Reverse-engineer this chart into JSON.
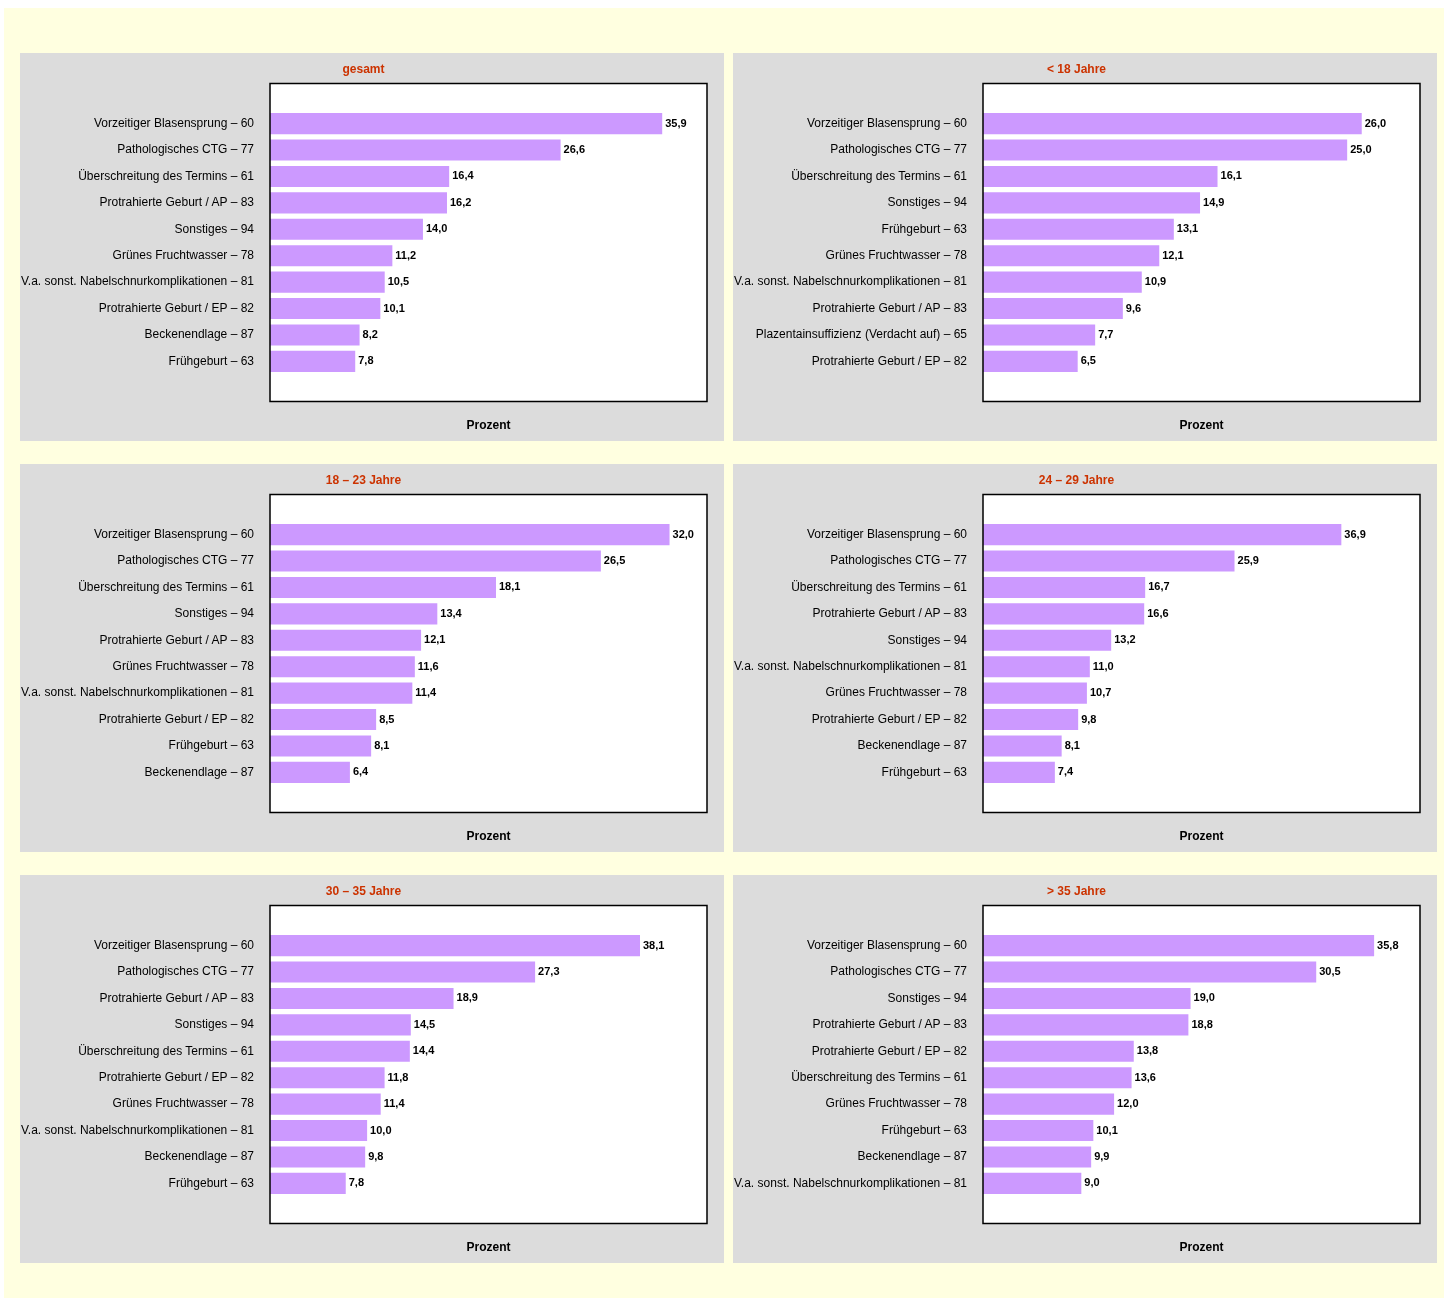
{
  "chart_data": [
    {
      "type": "bar",
      "orientation": "horizontal",
      "title": "gesamt",
      "xlabel": "Prozent",
      "color": "#cc99ff",
      "tick_labels": "y",
      "categories": [
        "Vorzeitiger Blasensprung – 60",
        "Pathologisches CTG – 77",
        "Überschreitung des Termins – 61",
        "Protrahierte Geburt / AP – 83",
        "Sonstiges – 94",
        "Grünes Fruchtwasser – 78",
        "V.a. sonst. Nabelschnurkomplikationen – 81",
        "Protrahierte Geburt / EP – 82",
        "Beckenendlage – 87",
        "Frühgeburt – 63"
      ],
      "values": [
        35.9,
        26.6,
        16.4,
        16.2,
        14.0,
        11.2,
        10.5,
        10.1,
        8.2,
        7.8
      ],
      "value_labels": [
        "35,9",
        "26,6",
        "16,4",
        "16,2",
        "14,0",
        "11,2",
        "10,5",
        "10,1",
        "8,2",
        "7,8"
      ]
    },
    {
      "type": "bar",
      "orientation": "horizontal",
      "title": "< 18 Jahre",
      "xlabel": "Prozent",
      "color": "#cc99ff",
      "tick_labels": "y",
      "categories": [
        "Vorzeitiger Blasensprung – 60",
        "Pathologisches CTG – 77",
        "Überschreitung des Termins – 61",
        "Sonstiges – 94",
        "Frühgeburt – 63",
        "Grünes Fruchtwasser – 78",
        "V.a. sonst. Nabelschnurkomplikationen – 81",
        "Protrahierte Geburt / AP – 83",
        "Plazentainsuffizienz (Verdacht auf) – 65",
        "Protrahierte Geburt / EP – 82"
      ],
      "values": [
        26.0,
        25.0,
        16.1,
        14.9,
        13.1,
        12.1,
        10.9,
        9.6,
        7.7,
        6.5
      ],
      "value_labels": [
        "26,0",
        "25,0",
        "16,1",
        "14,9",
        "13,1",
        "12,1",
        "10,9",
        "9,6",
        "7,7",
        "6,5"
      ]
    },
    {
      "type": "bar",
      "orientation": "horizontal",
      "title": "18 – 23 Jahre",
      "xlabel": "Prozent",
      "color": "#cc99ff",
      "tick_labels": "y",
      "categories": [
        "Vorzeitiger Blasensprung – 60",
        "Pathologisches CTG – 77",
        "Überschreitung des Termins – 61",
        "Sonstiges – 94",
        "Protrahierte Geburt / AP – 83",
        "Grünes Fruchtwasser – 78",
        "V.a. sonst. Nabelschnurkomplikationen – 81",
        "Protrahierte Geburt / EP – 82",
        "Frühgeburt – 63",
        "Beckenendlage – 87"
      ],
      "values": [
        32.0,
        26.5,
        18.1,
        13.4,
        12.1,
        11.6,
        11.4,
        8.5,
        8.1,
        6.4
      ],
      "value_labels": [
        "32,0",
        "26,5",
        "18,1",
        "13,4",
        "12,1",
        "11,6",
        "11,4",
        "8,5",
        "8,1",
        "6,4"
      ]
    },
    {
      "type": "bar",
      "orientation": "horizontal",
      "title": "24 – 29 Jahre",
      "xlabel": "Prozent",
      "color": "#cc99ff",
      "tick_labels": "y",
      "categories": [
        "Vorzeitiger Blasensprung – 60",
        "Pathologisches CTG – 77",
        "Überschreitung des Termins – 61",
        "Protrahierte Geburt / AP – 83",
        "Sonstiges – 94",
        "V.a. sonst. Nabelschnurkomplikationen – 81",
        "Grünes Fruchtwasser – 78",
        "Protrahierte Geburt / EP – 82",
        "Beckenendlage – 87",
        "Frühgeburt – 63"
      ],
      "values": [
        36.9,
        25.9,
        16.7,
        16.6,
        13.2,
        11.0,
        10.7,
        9.8,
        8.1,
        7.4
      ],
      "value_labels": [
        "36,9",
        "25,9",
        "16,7",
        "16,6",
        "13,2",
        "11,0",
        "10,7",
        "9,8",
        "8,1",
        "7,4"
      ]
    },
    {
      "type": "bar",
      "orientation": "horizontal",
      "title": "30 – 35 Jahre",
      "xlabel": "Prozent",
      "color": "#cc99ff",
      "tick_labels": "y",
      "categories": [
        "Vorzeitiger Blasensprung – 60",
        "Pathologisches CTG – 77",
        "Protrahierte Geburt / AP – 83",
        "Sonstiges – 94",
        "Überschreitung des Termins – 61",
        "Protrahierte Geburt / EP – 82",
        "Grünes Fruchtwasser – 78",
        "V.a. sonst. Nabelschnurkomplikationen – 81",
        "Beckenendlage – 87",
        "Frühgeburt – 63"
      ],
      "values": [
        38.1,
        27.3,
        18.9,
        14.5,
        14.4,
        11.8,
        11.4,
        10.0,
        9.8,
        7.8
      ],
      "value_labels": [
        "38,1",
        "27,3",
        "18,9",
        "14,5",
        "14,4",
        "11,8",
        "11,4",
        "10,0",
        "9,8",
        "7,8"
      ]
    },
    {
      "type": "bar",
      "orientation": "horizontal",
      "title": "> 35 Jahre",
      "xlabel": "Prozent",
      "color": "#cc99ff",
      "tick_labels": "y",
      "categories": [
        "Vorzeitiger Blasensprung – 60",
        "Pathologisches CTG – 77",
        "Sonstiges – 94",
        "Protrahierte Geburt / AP – 83",
        "Protrahierte Geburt / EP – 82",
        "Überschreitung des Termins – 61",
        "Grünes Fruchtwasser – 78",
        "Frühgeburt – 63",
        "Beckenendlage – 87",
        "V.a. sonst. Nabelschnurkomplikationen – 81"
      ],
      "values": [
        35.8,
        30.5,
        19.0,
        18.8,
        13.8,
        13.6,
        12.0,
        10.1,
        9.9,
        9.0
      ],
      "value_labels": [
        "35,8",
        "30,5",
        "19,0",
        "18,8",
        "13,8",
        "13,6",
        "12,0",
        "10,1",
        "9,9",
        "9,0"
      ]
    }
  ]
}
